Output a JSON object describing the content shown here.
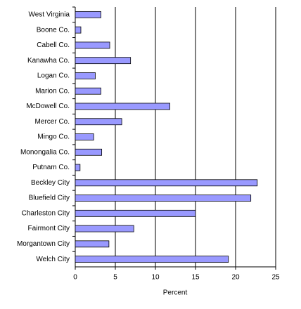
{
  "chart_data": {
    "type": "barh",
    "x_label": "Percent",
    "categories": [
      "West Virginia",
      "Boone Co.",
      "Cabell Co.",
      "Kanawha Co.",
      "Logan Co.",
      "Marion Co.",
      "McDowell Co.",
      "Mercer Co.",
      "Mingo Co.",
      "Monongalia Co.",
      "Putnam Co.",
      "Beckley City",
      "Bluefield City",
      "Charleston City",
      "Fairmont City",
      "Morgantown City",
      "Welch City"
    ],
    "values": [
      3.2,
      0.7,
      4.3,
      6.9,
      2.5,
      3.2,
      11.8,
      5.8,
      2.3,
      3.3,
      0.6,
      22.7,
      21.9,
      15.0,
      7.3,
      4.2,
      19.1
    ],
    "color": "#9999ff",
    "xlim": [
      0,
      25
    ],
    "xticks": [
      0,
      5,
      10,
      15,
      20,
      25
    ],
    "grid": true
  }
}
